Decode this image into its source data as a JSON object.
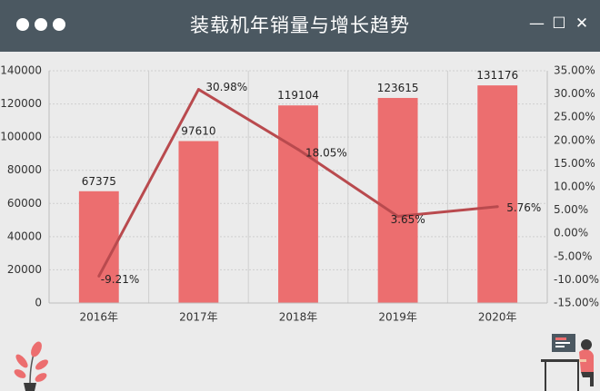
{
  "window": {
    "title": "装载机年销量与增长趋势",
    "controls": [
      "minimize-icon",
      "maximize-icon",
      "close-icon"
    ]
  },
  "chart_data": {
    "type": "bar+line",
    "categories": [
      "2016年",
      "2017年",
      "2018年",
      "2019年",
      "2020年"
    ],
    "bars": {
      "values": [
        67375,
        97610,
        119104,
        123615,
        131176
      ],
      "labels": [
        "67375",
        "97610",
        "119104",
        "123615",
        "131176"
      ],
      "color": "#ec6e6f"
    },
    "line": {
      "values": [
        -9.21,
        30.98,
        18.05,
        3.65,
        5.76
      ],
      "labels": [
        "-9.21%",
        "30.98%",
        "18.05%",
        "3.65%",
        "5.76%"
      ],
      "color": "#b94a4e"
    },
    "y_left": {
      "min": 0,
      "max": 140000,
      "ticks": [
        "0",
        "20000",
        "40000",
        "60000",
        "80000",
        "100000",
        "120000",
        "140000"
      ]
    },
    "y_right": {
      "min": -15,
      "max": 35,
      "ticks": [
        "-15.00%",
        "-10.00%",
        "-5.00%",
        "0.00%",
        "5.00%",
        "10.00%",
        "15.00%",
        "20.00%",
        "25.00%",
        "30.00%",
        "35.00%"
      ]
    },
    "grid": true
  },
  "colors": {
    "titlebar": "#4b5861",
    "background": "#ebebeb",
    "accent": "#ec6e6f"
  }
}
